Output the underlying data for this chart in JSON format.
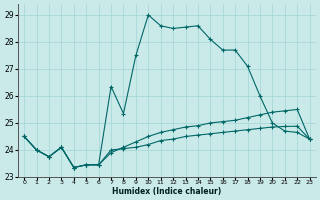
{
  "xlabel": "Humidex (Indice chaleur)",
  "xlim": [
    -0.5,
    23.5
  ],
  "ylim": [
    23.0,
    29.4
  ],
  "yticks": [
    23,
    24,
    25,
    26,
    27,
    28,
    29
  ],
  "xticks": [
    0,
    1,
    2,
    3,
    4,
    5,
    6,
    7,
    8,
    9,
    10,
    11,
    12,
    13,
    14,
    15,
    16,
    17,
    18,
    19,
    20,
    21,
    22,
    23
  ],
  "bg_color": "#caeaea",
  "grid_color": "#a8d8d8",
  "line_color": "#006666",
  "series1_x": [
    0,
    1,
    2,
    3,
    4,
    5,
    6,
    7,
    8,
    9,
    10,
    11,
    12,
    13,
    14,
    15,
    16,
    17,
    18,
    19,
    20,
    21,
    22,
    23
  ],
  "series1_y": [
    24.5,
    24.0,
    23.75,
    24.1,
    23.35,
    23.45,
    23.45,
    26.35,
    25.35,
    27.5,
    29.0,
    28.6,
    28.5,
    28.55,
    28.6,
    28.1,
    27.7,
    27.7,
    27.1,
    26.0,
    25.0,
    24.7,
    24.65,
    24.4
  ],
  "series2_x": [
    0,
    1,
    2,
    3,
    4,
    5,
    6,
    7,
    8,
    9,
    10,
    11,
    12,
    13,
    14,
    15,
    16,
    17,
    18,
    19,
    20,
    21,
    22,
    23
  ],
  "series2_y": [
    24.5,
    24.0,
    23.75,
    24.1,
    23.35,
    23.45,
    23.45,
    24.0,
    24.05,
    24.1,
    24.2,
    24.35,
    24.4,
    24.5,
    24.55,
    24.6,
    24.65,
    24.7,
    24.75,
    24.8,
    24.85,
    24.87,
    24.88,
    24.4
  ],
  "series3_x": [
    0,
    1,
    2,
    3,
    4,
    5,
    6,
    7,
    8,
    9,
    10,
    11,
    12,
    13,
    14,
    15,
    16,
    17,
    18,
    19,
    20,
    21,
    22,
    23
  ],
  "series3_y": [
    24.5,
    24.0,
    23.75,
    24.1,
    23.35,
    23.45,
    23.45,
    23.9,
    24.1,
    24.3,
    24.5,
    24.65,
    24.75,
    24.85,
    24.9,
    25.0,
    25.05,
    25.1,
    25.2,
    25.3,
    25.4,
    25.45,
    25.5,
    24.4
  ]
}
